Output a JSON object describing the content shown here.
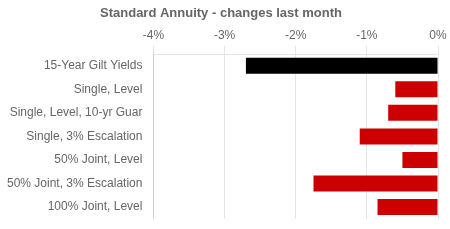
{
  "chart_data": {
    "type": "bar",
    "orientation": "horizontal",
    "title": "Standard Annuity - changes last month",
    "categories": [
      "15-Year Gilt Yields",
      "Single, Level",
      "Single, Level, 10-yr Guar",
      "Single, 3% Escalation",
      "50% Joint, Level",
      "50% Joint, 3% Escalation",
      "100% Joint, Level"
    ],
    "values": [
      -2.7,
      -0.6,
      -0.7,
      -1.1,
      -0.5,
      -1.75,
      -0.85
    ],
    "colors": [
      "#000000",
      "#cc0000",
      "#cc0000",
      "#cc0000",
      "#cc0000",
      "#cc0000",
      "#cc0000"
    ],
    "xlim": [
      -4.0,
      0.0
    ],
    "xticks": [
      {
        "value": -4,
        "label": "-4%"
      },
      {
        "value": -3,
        "label": "-3%"
      },
      {
        "value": -2,
        "label": "-2%"
      },
      {
        "value": -1,
        "label": "-1%"
      },
      {
        "value": 0,
        "label": "0%"
      }
    ],
    "grid": true
  }
}
